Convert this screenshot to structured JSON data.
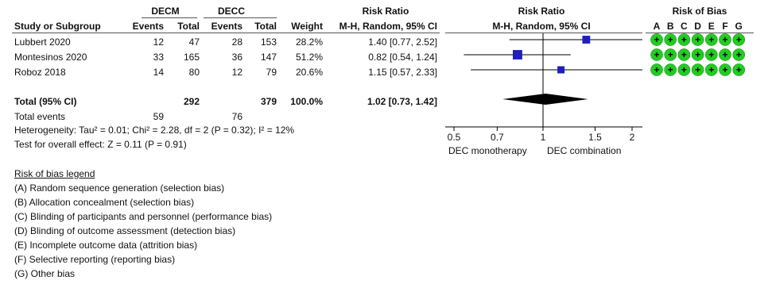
{
  "groups": {
    "experimental": "DECM",
    "control": "DECC"
  },
  "columns": {
    "study": "Study or Subgroup",
    "e_events": "Events",
    "e_total": "Total",
    "c_events": "Events",
    "c_total": "Total",
    "weight": "Weight",
    "rr_title": "Risk Ratio",
    "rr_method": "M-H, Random, 95% CI",
    "plot_title": "Risk Ratio",
    "plot_method": "M-H, Random, 95% CI",
    "rob_title": "Risk of Bias",
    "rob_letters": [
      "A",
      "B",
      "C",
      "D",
      "E",
      "F",
      "G"
    ]
  },
  "studies": [
    {
      "name": "Lubbert 2020",
      "e_events": "12",
      "e_total": "47",
      "c_events": "28",
      "c_total": "153",
      "weight": "28.2%",
      "rr": "1.40 [0.77, 2.52]"
    },
    {
      "name": "Montesinos 2020",
      "e_events": "33",
      "e_total": "165",
      "c_events": "36",
      "c_total": "147",
      "weight": "51.2%",
      "rr": "0.82 [0.54, 1.24]"
    },
    {
      "name": "Roboz 2018",
      "e_events": "14",
      "e_total": "80",
      "c_events": "12",
      "c_total": "79",
      "weight": "20.6%",
      "rr": "1.15 [0.57, 2.33]"
    }
  ],
  "total": {
    "label": "Total (95% CI)",
    "e_total": "292",
    "c_total": "379",
    "weight": "100.0%",
    "rr": "1.02 [0.73, 1.42]"
  },
  "total_events": {
    "label": "Total events",
    "e": "59",
    "c": "76"
  },
  "heterogeneity": "Heterogeneity: Tau² = 0.01; Chi² = 2.28, df = 2 (P = 0.32); I² = 12%",
  "overall_effect": "Test for overall effect: Z = 0.11 (P = 0.91)",
  "axis": {
    "left_label": "DEC monotherapy",
    "right_label": "DEC combination"
  },
  "legend": {
    "title": "Risk of bias legend",
    "items": [
      "(A) Random sequence generation (selection bias)",
      "(B) Allocation concealment (selection bias)",
      "(C) Blinding of participants and personnel (performance bias)",
      "(D) Blinding of outcome assessment (detection bias)",
      "(E) Incomplete outcome data (attrition bias)",
      "(F) Selective reporting (reporting bias)",
      "(G) Other bias"
    ]
  },
  "colors": {
    "square": "#1f1fbf",
    "diamond": "#000000",
    "low_risk": "#22cc22"
  },
  "chart_data": {
    "type": "scatter",
    "title": "Risk Ratio",
    "subtitle": "M-H, Random, 95% CI",
    "x_scale": "log",
    "xlim": [
      0.4,
      2.5
    ],
    "x_ticks": [
      0.5,
      0.7,
      1,
      1.5,
      2
    ],
    "x_tick_labels": [
      "0.5",
      "0.7",
      "1",
      "1.5",
      "2"
    ],
    "series": [
      {
        "values": [
          {
            "study": "Lubbert 2020",
            "rr": 1.4,
            "lo": 0.77,
            "hi": 2.52,
            "weight": 28.2
          },
          {
            "study": "Montesinos 2020",
            "rr": 0.82,
            "lo": 0.54,
            "hi": 1.24,
            "weight": 51.2
          },
          {
            "study": "Roboz 2018",
            "rr": 1.15,
            "lo": 0.57,
            "hi": 2.33,
            "weight": 20.6
          }
        ]
      }
    ],
    "pooled": {
      "rr": 1.02,
      "lo": 0.73,
      "hi": 1.42
    },
    "risk_of_bias": [
      [
        "+",
        "+",
        "+",
        "+",
        "+",
        "+",
        "+"
      ],
      [
        "+",
        "+",
        "+",
        "+",
        "+",
        "+",
        "+"
      ],
      [
        "+",
        "+",
        "+",
        "+",
        "+",
        "+",
        "+"
      ]
    ]
  }
}
